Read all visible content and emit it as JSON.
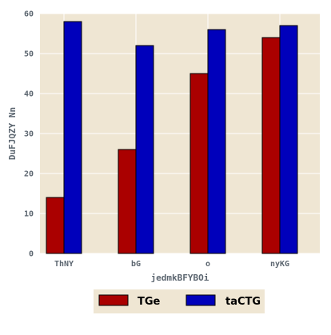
{
  "chart_data": {
    "type": "bar",
    "title": "",
    "xlabel": "jedmkBFYBOi",
    "ylabel": "DuFJQZY Nn",
    "categories": [
      "ThNY",
      "bG",
      "o",
      "nyKG"
    ],
    "series": [
      {
        "name": "TGe",
        "values": [
          14,
          26,
          45,
          54
        ],
        "color": "#aa0000"
      },
      {
        "name": "taCTG",
        "values": [
          58,
          52,
          56,
          57
        ],
        "color": "#0000bb"
      }
    ],
    "ylim": [
      0,
      60
    ],
    "yticks": [
      0,
      10,
      20,
      30,
      40,
      50,
      60
    ],
    "grid": true,
    "legend_position": "bottom-center",
    "colors": {
      "plot_background": "#efe6d3",
      "grid": "#ffffff",
      "legend_background": "#efe6d3"
    }
  }
}
